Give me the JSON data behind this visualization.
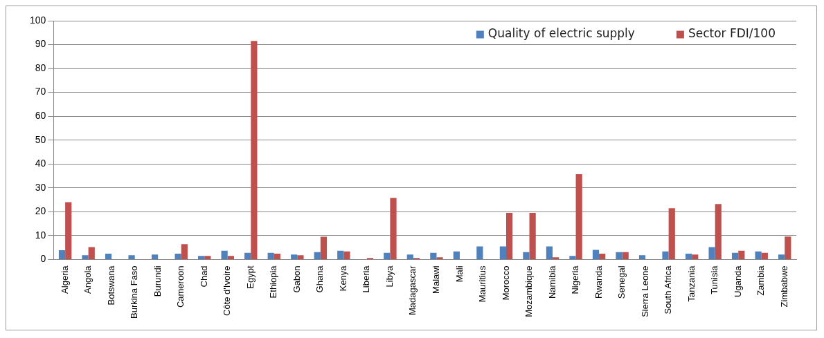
{
  "chart_data": {
    "type": "bar",
    "categories": [
      "Algeria",
      "Angola",
      "Botswana",
      "Burkina Faso",
      "Burundi",
      "Cameroon",
      "Chad",
      "Côte d'Ivoire",
      "Egypt",
      "Ethiopia",
      "Gabon",
      "Ghana",
      "Kenya",
      "Liberia",
      "Libya",
      "Madagascar",
      "Malawi",
      "Mali",
      "Mauritius",
      "Morocco",
      "Mozambique",
      "Namibia",
      "Nigeria",
      "Rwanda",
      "Senegal",
      "Sierra Leone",
      "South Africa",
      "Tanzania",
      "Tunisia",
      "Uganda",
      "Zambia",
      "Zimbabwe"
    ],
    "series": [
      {
        "name": "Quality of electric supply",
        "color": "#4f81bd",
        "values": [
          3.9,
          1.8,
          2.4,
          1.8,
          2.1,
          2.4,
          1.5,
          3.7,
          2.8,
          2.8,
          2.1,
          3.1,
          3.7,
          null,
          2.8,
          2.1,
          2.8,
          3.4,
          5.5,
          5.5,
          3.1,
          5.5,
          1.5,
          4.0,
          3.1,
          1.8,
          3.4,
          2.4,
          5.2,
          2.8,
          3.4,
          2.1
        ]
      },
      {
        "name": "Sector FDI/100",
        "color": "#c0504d",
        "values": [
          24,
          5.2,
          null,
          null,
          null,
          6.4,
          1.5,
          1.5,
          91.5,
          2.4,
          1.8,
          9.5,
          3.4,
          0.6,
          25.8,
          0.6,
          0.9,
          null,
          null,
          19.5,
          19.5,
          0.9,
          35.7,
          2.4,
          3.1,
          null,
          21.5,
          2.1,
          23.2,
          3.7,
          2.8,
          9.6
        ]
      }
    ],
    "ylim": [
      0,
      100
    ],
    "yticks": [
      0,
      10,
      20,
      30,
      40,
      50,
      60,
      70,
      80,
      90,
      100
    ],
    "grid": "y",
    "legend": "top right"
  }
}
